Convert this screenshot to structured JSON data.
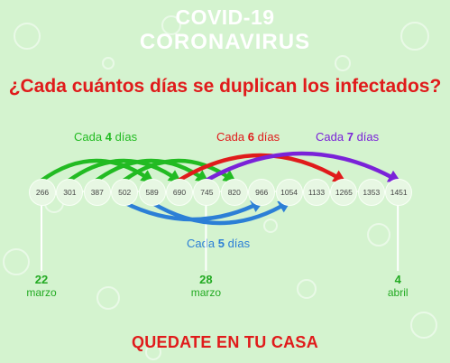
{
  "header": {
    "line1": "COVID-19",
    "line2": "CORONAVIRUS"
  },
  "question": "¿Cada cuántos días se duplican los infectados?",
  "labels": {
    "green": {
      "prefix": "Cada",
      "num": "4",
      "suffix": "días",
      "color": "#22bb22"
    },
    "red": {
      "prefix": "Cada",
      "num": "6",
      "suffix": "días",
      "color": "#e01b1b"
    },
    "purple": {
      "prefix": "Cada",
      "num": "7",
      "suffix": "días",
      "color": "#7a22d8"
    },
    "blue": {
      "prefix": "Cada",
      "num": "5",
      "suffix": "días",
      "color": "#2c7fd6"
    }
  },
  "numbers": [
    "266",
    "301",
    "387",
    "502",
    "589",
    "690",
    "745",
    "820",
    "966",
    "1054",
    "1133",
    "1265",
    "1353",
    "1451"
  ],
  "arcs": {
    "green": [
      [
        0,
        4
      ],
      [
        1,
        5
      ],
      [
        2,
        6
      ],
      [
        3,
        7
      ]
    ],
    "red": [
      [
        5,
        11
      ]
    ],
    "purple": [
      [
        6,
        13
      ]
    ],
    "blue": [
      [
        4,
        9
      ],
      [
        3,
        8
      ]
    ]
  },
  "dates": [
    {
      "day": "22",
      "month": "marzo",
      "index": 0
    },
    {
      "day": "28",
      "month": "marzo",
      "index": 6
    },
    {
      "day": "4",
      "month": "abril",
      "index": 13
    }
  ],
  "footer": "QUEDATE EN TU CASA"
}
